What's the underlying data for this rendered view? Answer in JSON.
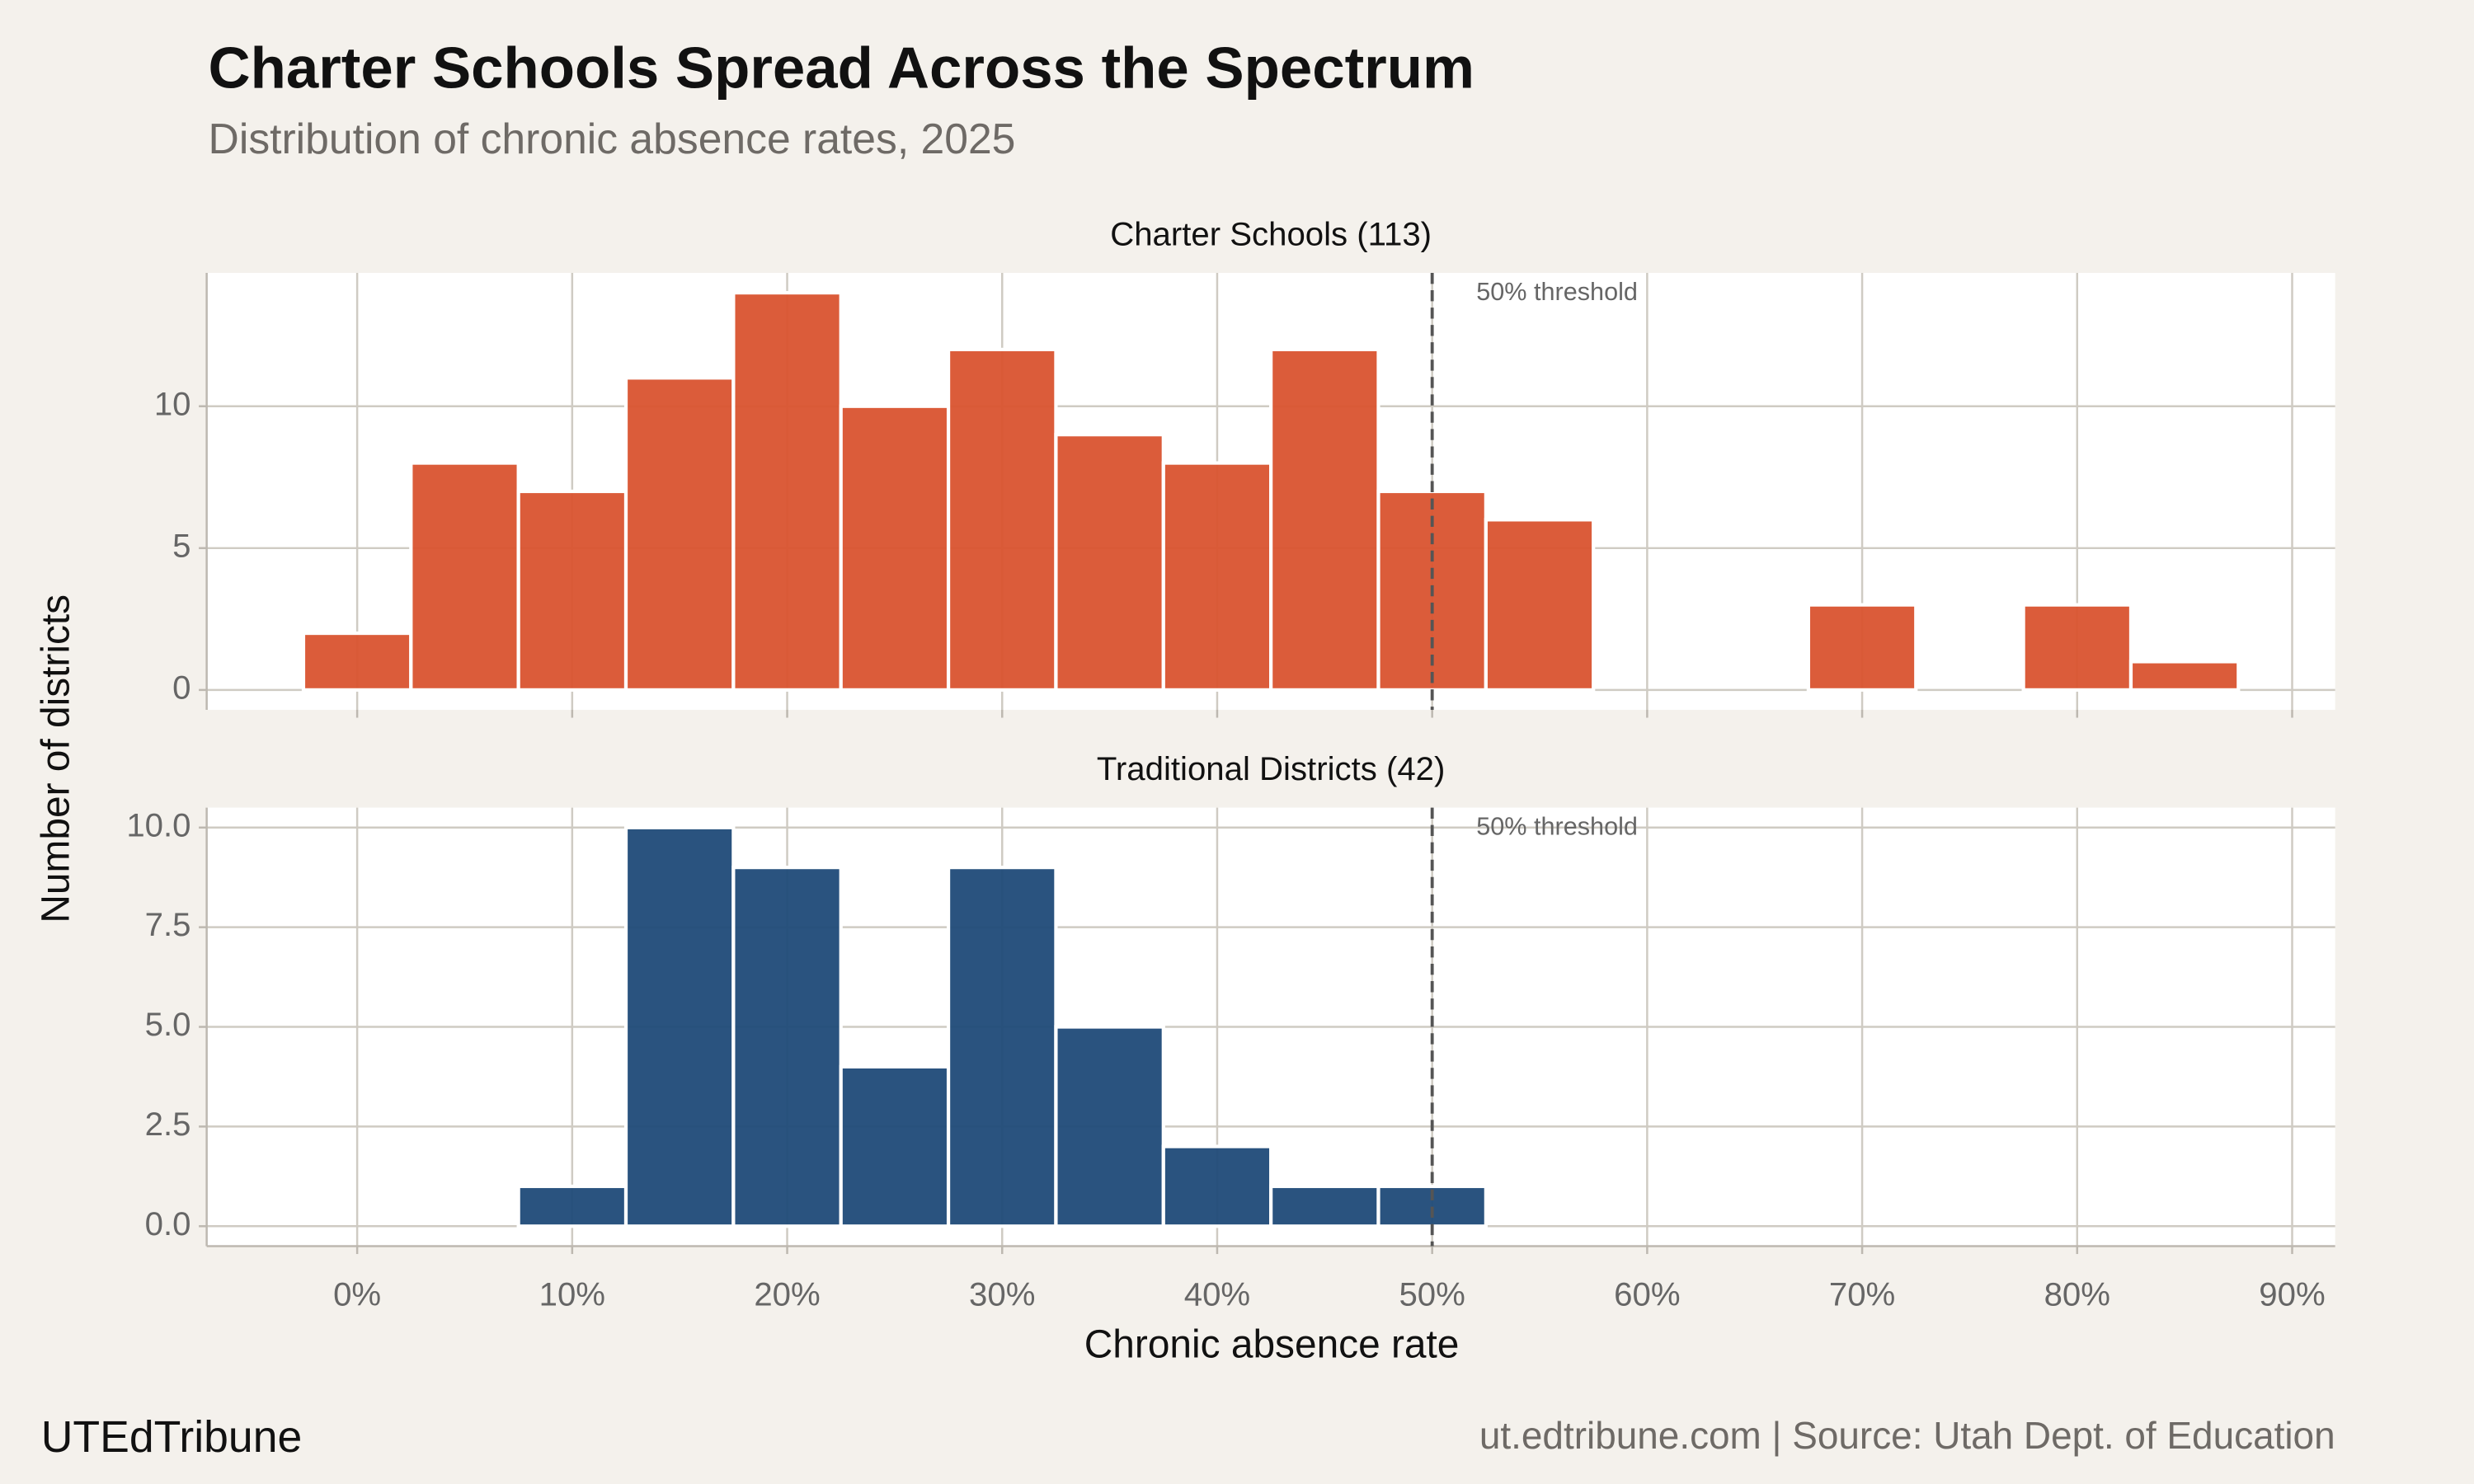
{
  "header": {
    "title": "Charter Schools Spread Across the Spectrum",
    "subtitle": "Distribution of chronic absence rates, 2025"
  },
  "axis_labels": {
    "x": "Chronic absence rate",
    "y": "Number of districts"
  },
  "footer": {
    "left": "UTEdTribune",
    "right": "ut.edtribune.com | Source: Utah Dept. of Education"
  },
  "chart_data": [
    {
      "type": "histogram",
      "title": "Charter Schools (113)",
      "color": "#d9532f",
      "bins": [
        -2.5,
        2.5,
        7.5,
        12.5,
        17.5,
        22.5,
        27.5,
        32.5,
        37.5,
        42.5,
        47.5,
        52.5,
        57.5,
        62.5,
        67.5,
        72.5,
        77.5,
        82.5,
        87.5
      ],
      "values": [
        2,
        8,
        7,
        11,
        14,
        10,
        12,
        9,
        8,
        12,
        7,
        6,
        0,
        0,
        3,
        0,
        3,
        1
      ],
      "xlim": [
        -7,
        92
      ],
      "ylim": [
        -0.7,
        14.7
      ],
      "xticks": [
        0,
        10,
        20,
        30,
        40,
        50,
        60,
        70,
        80,
        90
      ],
      "yticks": [
        0,
        5,
        10
      ],
      "grid": true,
      "threshold": {
        "value": 50,
        "label": "50% threshold"
      }
    },
    {
      "type": "histogram",
      "title": "Traditional Districts (42)",
      "color": "#1f4a78",
      "bins": [
        -2.5,
        2.5,
        7.5,
        12.5,
        17.5,
        22.5,
        27.5,
        32.5,
        37.5,
        42.5,
        47.5,
        52.5,
        57.5,
        62.5,
        67.5,
        72.5,
        77.5,
        82.5,
        87.5
      ],
      "values": [
        0,
        0,
        1,
        10,
        9,
        4,
        9,
        5,
        2,
        1,
        1,
        0,
        0,
        0,
        0,
        0,
        0,
        0
      ],
      "xlim": [
        -7,
        92
      ],
      "ylim": [
        -0.5,
        10.5
      ],
      "xticks": [
        {
          "value": 0,
          "label": "0%"
        },
        {
          "value": 10,
          "label": "10%"
        },
        {
          "value": 20,
          "label": "20%"
        },
        {
          "value": 30,
          "label": "30%"
        },
        {
          "value": 40,
          "label": "40%"
        },
        {
          "value": 50,
          "label": "50%"
        },
        {
          "value": 60,
          "label": "60%"
        },
        {
          "value": 70,
          "label": "70%"
        },
        {
          "value": 80,
          "label": "80%"
        },
        {
          "value": 90,
          "label": "90%"
        }
      ],
      "yticks": [
        {
          "value": 0,
          "label": "0.0"
        },
        2.5,
        {
          "value": 5,
          "label": "5.0"
        },
        7.5,
        {
          "value": 10,
          "label": "10.0"
        }
      ],
      "grid": true,
      "threshold": {
        "value": 50,
        "label": "50% threshold"
      }
    }
  ]
}
